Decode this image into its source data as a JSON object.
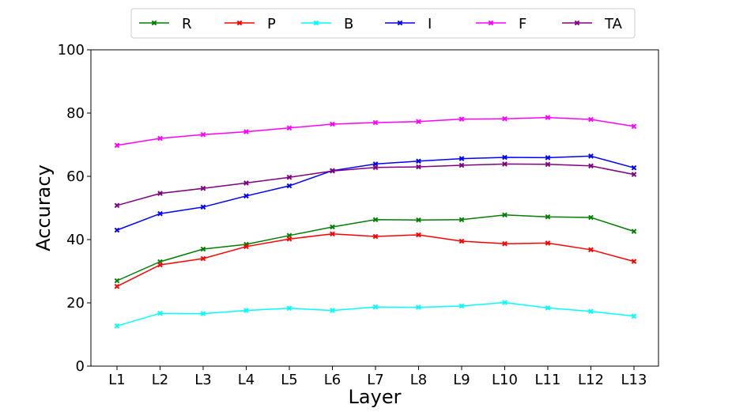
{
  "chart_data": {
    "type": "line",
    "categories": [
      "L1",
      "L2",
      "L3",
      "L4",
      "L5",
      "L6",
      "L7",
      "L8",
      "L9",
      "L10",
      "L11",
      "L12",
      "L13"
    ],
    "xlabel": "Layer",
    "ylabel": "Accuracy",
    "ylim": [
      0,
      100
    ],
    "yticks": [
      "0",
      "20",
      "40",
      "60",
      "80",
      "100"
    ],
    "grid": false,
    "legend_position": "top-center",
    "series": [
      {
        "name": "R",
        "color": "#008000",
        "values": [
          27.0,
          33.0,
          37.0,
          38.5,
          41.3,
          44.0,
          46.3,
          46.2,
          46.3,
          47.8,
          47.2,
          47.0,
          42.6
        ]
      },
      {
        "name": "P",
        "color": "#ff0000",
        "values": [
          25.2,
          32.0,
          34.0,
          37.8,
          40.2,
          41.8,
          41.0,
          41.5,
          39.5,
          38.7,
          38.9,
          36.8,
          33.1
        ]
      },
      {
        "name": "B",
        "color": "#00ffff",
        "values": [
          12.7,
          16.7,
          16.6,
          17.6,
          18.3,
          17.6,
          18.7,
          18.6,
          19.0,
          20.1,
          18.4,
          17.3,
          15.8
        ]
      },
      {
        "name": "I",
        "color": "#0000ff",
        "values": [
          43.0,
          48.2,
          50.3,
          53.8,
          57.0,
          61.8,
          63.9,
          64.8,
          65.6,
          66.0,
          65.9,
          66.4,
          62.7
        ]
      },
      {
        "name": "F",
        "color": "#ff00ff",
        "values": [
          69.8,
          72.0,
          73.2,
          74.1,
          75.3,
          76.5,
          77.0,
          77.3,
          78.1,
          78.2,
          78.6,
          78.0,
          75.8
        ]
      },
      {
        "name": "TA",
        "color": "#800080",
        "values": [
          50.8,
          54.6,
          56.2,
          57.9,
          59.7,
          61.7,
          62.8,
          63.0,
          63.5,
          63.9,
          63.8,
          63.3,
          60.6
        ]
      }
    ]
  }
}
